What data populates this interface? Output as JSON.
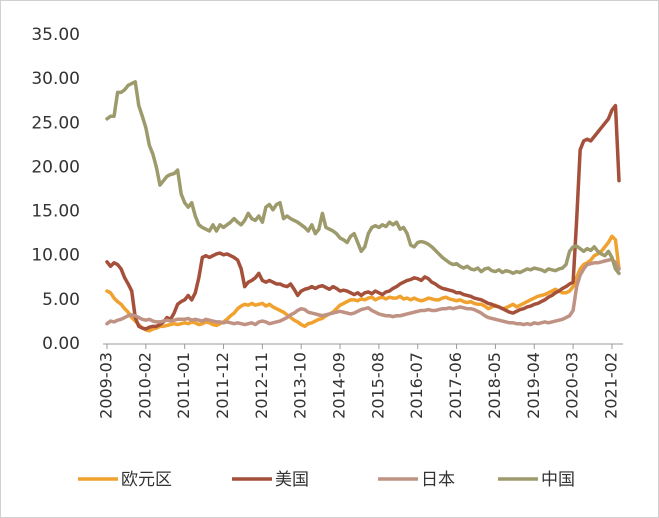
{
  "chart_data": {
    "type": "line",
    "categories": [
      "2009-03",
      null,
      null,
      null,
      null,
      null,
      null,
      null,
      null,
      null,
      null,
      "2010-02",
      null,
      null,
      null,
      null,
      null,
      null,
      null,
      null,
      null,
      null,
      "2011-01",
      null,
      null,
      null,
      null,
      null,
      null,
      null,
      null,
      null,
      null,
      "2011-12",
      null,
      null,
      null,
      null,
      null,
      null,
      null,
      null,
      null,
      null,
      "2012-11",
      null,
      null,
      null,
      null,
      null,
      null,
      null,
      null,
      null,
      null,
      "2013-10",
      null,
      null,
      null,
      null,
      null,
      null,
      null,
      null,
      null,
      null,
      "2014-09",
      null,
      null,
      null,
      null,
      null,
      null,
      null,
      null,
      null,
      null,
      "2015-08",
      null,
      null,
      null,
      null,
      null,
      null,
      null,
      null,
      null,
      null,
      "2016-07",
      null,
      null,
      null,
      null,
      null,
      null,
      null,
      null,
      null,
      null,
      "2017-06",
      null,
      null,
      null,
      null,
      null,
      null,
      null,
      null,
      null,
      null,
      "2018-05",
      null,
      null,
      null,
      null,
      null,
      null,
      null,
      null,
      null,
      null,
      "2019-04",
      null,
      null,
      null,
      null,
      null,
      null,
      null,
      null,
      null,
      null,
      "2020-03",
      null,
      null,
      null,
      null,
      null,
      null,
      null,
      null,
      null,
      null,
      "2021-02",
      null,
      null
    ],
    "series": [
      {
        "name": "欧元区",
        "color": "#f0a12e",
        "values": [
          6,
          5.8,
          5.2,
          4.8,
          4.5,
          4,
          3.6,
          3,
          2.6,
          2.2,
          1.8,
          1.6,
          1.5,
          1.7,
          1.8,
          2,
          2,
          2.1,
          2.2,
          2.3,
          2.2,
          2.3,
          2.4,
          2.3,
          2.5,
          2.4,
          2.2,
          2.3,
          2.5,
          2.4,
          2.2,
          2.1,
          2.3,
          2.5,
          2.8,
          3.2,
          3.5,
          4,
          4.3,
          4.5,
          4.4,
          4.6,
          4.4,
          4.5,
          4.6,
          4.3,
          4.5,
          4.2,
          4,
          3.8,
          3.6,
          3.3,
          3,
          2.7,
          2.5,
          2.2,
          2,
          2.3,
          2.4,
          2.6,
          2.8,
          2.9,
          3.2,
          3.4,
          3.6,
          4,
          4.4,
          4.6,
          4.8,
          5,
          5,
          4.9,
          5.1,
          5,
          5.2,
          5.3,
          5,
          5.2,
          5.3,
          5.1,
          5.3,
          5.2,
          5.2,
          5.4,
          5.1,
          5.2,
          5,
          5.2,
          5,
          4.9,
          5,
          5.2,
          5.1,
          5,
          5,
          5.2,
          5.3,
          5.1,
          5,
          4.9,
          5,
          4.8,
          4.7,
          4.8,
          4.6,
          4.5,
          4.5,
          4.3,
          4,
          4.2,
          4.4,
          4.2,
          4,
          4.1,
          4.3,
          4.5,
          4.2,
          4.4,
          4.6,
          4.8,
          5,
          5.2,
          5.4,
          5.5,
          5.6,
          5.8,
          6,
          6.2,
          6,
          5.8,
          5.8,
          6,
          6.5,
          7.5,
          8.5,
          9,
          9.2,
          9.5,
          10,
          10.2,
          10.5,
          11,
          11.5,
          12.2,
          11.8,
          8.5
        ]
      },
      {
        "name": "美国",
        "color": "#a5503a",
        "values": [
          9.3,
          8.8,
          9.2,
          9,
          8.5,
          7.5,
          6.8,
          6,
          3,
          2,
          1.8,
          1.7,
          1.9,
          2,
          2,
          2.2,
          2.5,
          3,
          2.8,
          3.5,
          4.5,
          4.8,
          5,
          5.5,
          5,
          5.8,
          7.5,
          9.8,
          10,
          9.8,
          10,
          10.2,
          10.3,
          10.1,
          10.2,
          10,
          9.8,
          9.5,
          8.5,
          6.5,
          7,
          7.2,
          7.5,
          8,
          7.2,
          7,
          7.2,
          7,
          6.8,
          6.8,
          6.6,
          6.5,
          6.8,
          6.2,
          5.5,
          6,
          6.2,
          6.3,
          6.5,
          6.3,
          6.5,
          6.6,
          6.4,
          6.2,
          6.5,
          6.3,
          6,
          6.1,
          6,
          5.8,
          5.6,
          5.8,
          5.5,
          5.8,
          5.9,
          5.7,
          6,
          5.8,
          5.6,
          5.9,
          6,
          6.3,
          6.5,
          6.8,
          7,
          7.2,
          7.3,
          7.5,
          7.4,
          7.2,
          7.6,
          7.4,
          7,
          6.8,
          6.5,
          6.3,
          6.2,
          6.1,
          6,
          5.8,
          5.8,
          5.6,
          5.5,
          5.4,
          5.2,
          5.1,
          5,
          4.8,
          4.6,
          4.5,
          4.3,
          4.2,
          4,
          3.8,
          3.6,
          3.5,
          3.7,
          3.9,
          4,
          4.2,
          4.3,
          4.5,
          4.6,
          4.8,
          5,
          5.3,
          5.5,
          5.8,
          6,
          6.3,
          6.5,
          6.8,
          7,
          14,
          22,
          23,
          23.2,
          23,
          23.5,
          24,
          24.5,
          25,
          25.5,
          26.5,
          27,
          18.5
        ]
      },
      {
        "name": "日本",
        "color": "#bf9283",
        "values": [
          2.3,
          2.6,
          2.5,
          2.7,
          2.8,
          3,
          3.2,
          3.3,
          3.2,
          3,
          2.8,
          2.7,
          2.8,
          2.6,
          2.5,
          2.5,
          2.6,
          2.7,
          2.6,
          2.7,
          2.8,
          2.8,
          2.8,
          2.9,
          2.7,
          2.8,
          2.7,
          2.6,
          2.8,
          2.7,
          2.6,
          2.5,
          2.5,
          2.4,
          2.5,
          2.4,
          2.3,
          2.4,
          2.3,
          2.2,
          2.3,
          2.4,
          2.2,
          2.5,
          2.6,
          2.5,
          2.3,
          2.4,
          2.5,
          2.6,
          2.8,
          3,
          3.3,
          3.5,
          3.8,
          4,
          3.9,
          3.6,
          3.5,
          3.4,
          3.3,
          3.2,
          3.3,
          3.4,
          3.5,
          3.6,
          3.7,
          3.6,
          3.5,
          3.4,
          3.5,
          3.7,
          3.9,
          4,
          4.1,
          3.8,
          3.6,
          3.4,
          3.3,
          3.2,
          3.2,
          3.1,
          3.2,
          3.2,
          3.3,
          3.4,
          3.5,
          3.6,
          3.7,
          3.8,
          3.8,
          3.9,
          3.8,
          3.8,
          3.9,
          4,
          4,
          4.1,
          4,
          4.1,
          4.2,
          4.1,
          4,
          4,
          3.9,
          3.7,
          3.5,
          3.2,
          3,
          2.9,
          2.8,
          2.7,
          2.6,
          2.5,
          2.4,
          2.4,
          2.3,
          2.3,
          2.2,
          2.3,
          2.2,
          2.4,
          2.3,
          2.4,
          2.5,
          2.4,
          2.5,
          2.6,
          2.7,
          2.8,
          3,
          3.2,
          3.8,
          6.5,
          7.8,
          8.5,
          9,
          9.1,
          9.2,
          9.2,
          9.3,
          9.4,
          9.5,
          9.6,
          9.2,
          8.5
        ]
      },
      {
        "name": "中国",
        "color": "#9d9a6c",
        "values": [
          25.5,
          25.8,
          25.8,
          28.5,
          28.5,
          28.8,
          29.3,
          29.5,
          29.7,
          27,
          25.8,
          24.5,
          22.5,
          21.5,
          20,
          18,
          18.5,
          19,
          19.2,
          19.3,
          19.7,
          17,
          16,
          15.5,
          16,
          14.5,
          13.5,
          13.2,
          13,
          12.8,
          13.5,
          12.8,
          13.5,
          13.2,
          13.5,
          13.8,
          14.2,
          13.8,
          13.5,
          14,
          14.8,
          14.2,
          14,
          14.5,
          13.8,
          15.5,
          15.8,
          15.2,
          15.8,
          16,
          14.2,
          14.5,
          14.2,
          14,
          13.8,
          13.5,
          13.2,
          12.8,
          13.5,
          12.5,
          13,
          14.8,
          13.2,
          13,
          12.8,
          12.5,
          12,
          11.8,
          11.5,
          12.2,
          12.5,
          11.5,
          10.5,
          11,
          12.5,
          13.2,
          13.4,
          13.2,
          13.5,
          13.3,
          13.8,
          13.5,
          13.8,
          13,
          13.2,
          12.5,
          11.2,
          11,
          11.5,
          11.6,
          11.5,
          11.3,
          11,
          10.6,
          10.2,
          9.8,
          9.5,
          9.2,
          9,
          9.1,
          8.8,
          8.6,
          8.8,
          8.5,
          8.4,
          8.6,
          8.2,
          8.5,
          8.6,
          8.3,
          8.2,
          8.4,
          8.1,
          8.3,
          8.2,
          8,
          8.2,
          8.1,
          8.3,
          8.5,
          8.4,
          8.6,
          8.5,
          8.4,
          8.2,
          8.5,
          8.4,
          8.3,
          8.5,
          8.6,
          9,
          10.5,
          11,
          11.1,
          10.8,
          10.5,
          10.8,
          10.6,
          11,
          10.5,
          10.2,
          10,
          10.5,
          9.8,
          8.5,
          8
        ]
      }
    ],
    "ylim": [
      0,
      35
    ],
    "yticks": [
      {
        "value": 0,
        "label": "0.00"
      },
      {
        "value": 5,
        "label": "5.00"
      },
      {
        "value": 10,
        "label": "10.00"
      },
      {
        "value": 15,
        "label": "15.00"
      },
      {
        "value": 20,
        "label": "20.00"
      },
      {
        "value": 25,
        "label": "25.00"
      },
      {
        "value": 30,
        "label": "30.00"
      },
      {
        "value": 35,
        "label": "35.00"
      }
    ],
    "grid": false,
    "legend": "bottom"
  }
}
